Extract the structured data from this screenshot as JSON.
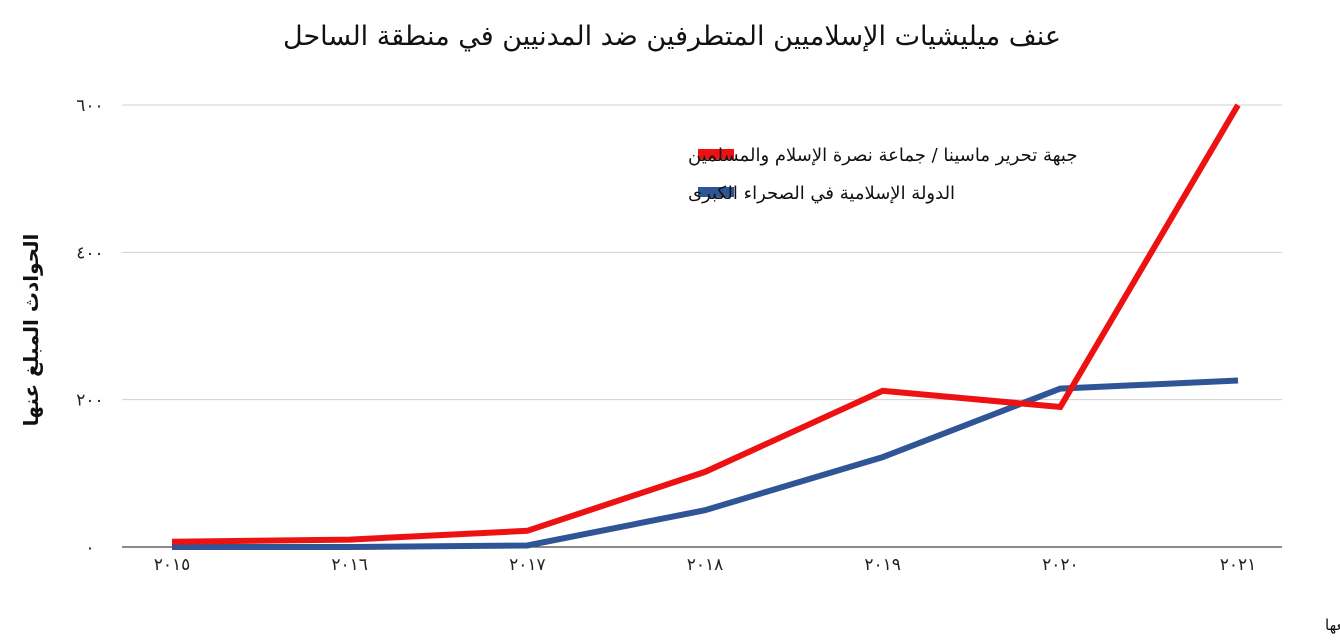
{
  "chart_data": {
    "type": "line",
    "title": "عنف ميليشيات الإسلاميين المتطرفين ضد المدنيين في منطقة الساحل",
    "xlabel": "",
    "ylabel": "الحوادث المبلغ عنها",
    "x": [
      2015,
      2016,
      2017,
      2018,
      2019,
      2020,
      2021
    ],
    "x_tick_labels": [
      "٢٠١٥",
      "٢٠١٦",
      "٢٠١٧",
      "٢٠١٨",
      "٢٠١٩",
      "٢٠٢٠",
      "٢٠٢١"
    ],
    "y_ticks": [
      0,
      200,
      400,
      600
    ],
    "y_tick_labels": [
      "٠",
      "٢٠٠",
      "٤٠٠",
      "٦٠٠"
    ],
    "ylim": [
      0,
      600
    ],
    "grid": true,
    "legend_position": "top-left",
    "series": [
      {
        "name": "جبهة تحرير ماسينا / جماعة نصرة الإسلام والمسلمين",
        "color": "#ee1111",
        "values": [
          7,
          10,
          22,
          102,
          212,
          190,
          600
        ]
      },
      {
        "name": "الدولة الإسلامية في الصحراء الكبرى",
        "color": "#2f5597",
        "values": [
          0,
          0,
          2,
          50,
          122,
          215,
          226
        ]
      }
    ],
    "source": "مصدر المعلومات: مشروع بيانات الصراعات المسلحة ومواقعها"
  }
}
